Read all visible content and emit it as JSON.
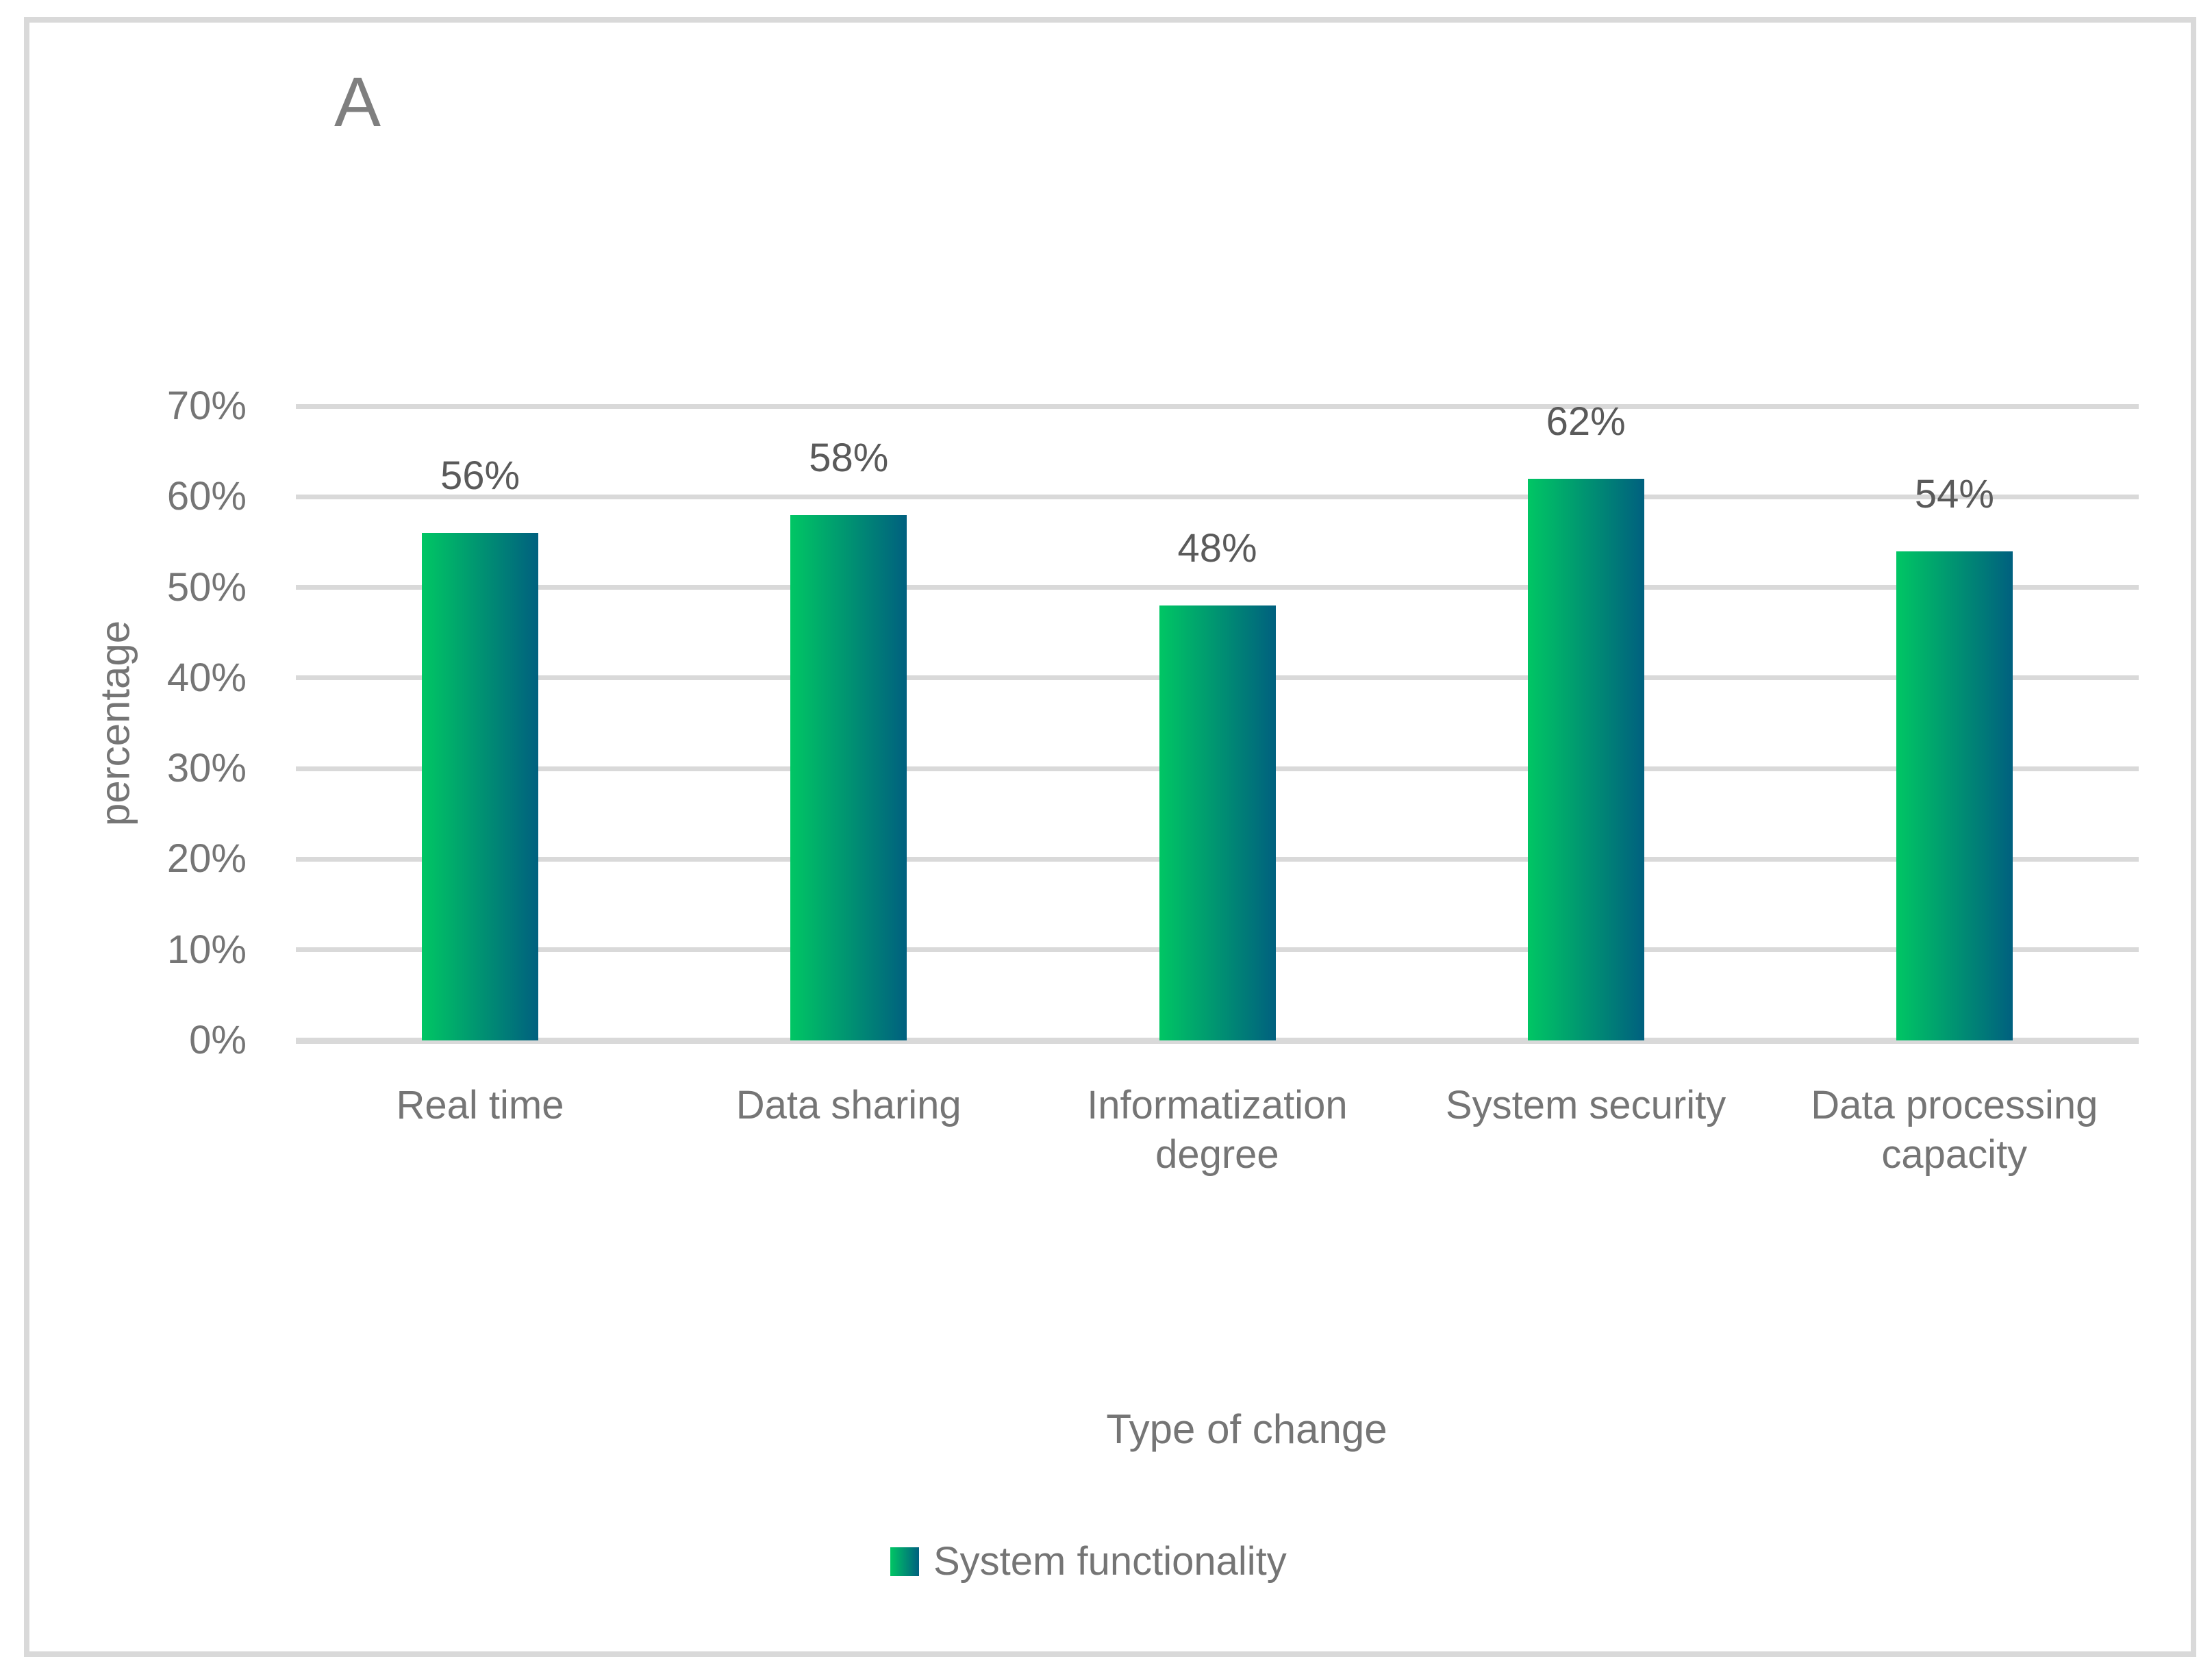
{
  "figure": {
    "panel_label": "A"
  },
  "chart_data": {
    "type": "bar",
    "title": "",
    "categories": [
      "Real time",
      "Data sharing",
      "Informatization degree",
      "System security",
      "Data processing capacity"
    ],
    "series": [
      {
        "name": "System functionality",
        "values": [
          56,
          58,
          48,
          62,
          54
        ]
      }
    ],
    "data_labels": [
      "56%",
      "58%",
      "48%",
      "62%",
      "54%"
    ],
    "xlabel": "Type of change",
    "ylabel": "percentage",
    "y_ticks": [
      "0%",
      "10%",
      "20%",
      "30%",
      "40%",
      "50%",
      "60%",
      "70%"
    ],
    "ylim": [
      0,
      70
    ],
    "grid": true,
    "legend_position": "bottom",
    "colors": {
      "bar_gradient_start": "#00C664",
      "bar_gradient_end": "#00607F",
      "gridline": "#D9D9D9",
      "axis_line": "#D9D9D9",
      "text": "#757575",
      "data_label_text": "#5A5A5A",
      "panel_label_text": "#7F7F7F",
      "border": "#D9D9D9"
    }
  }
}
